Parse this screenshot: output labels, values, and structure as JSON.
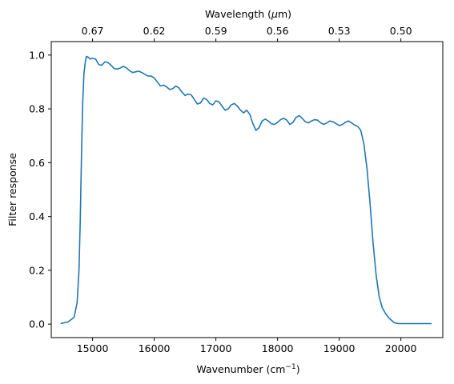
{
  "chart_data": {
    "type": "line",
    "title": "",
    "xlabel": "Wavenumber (cm",
    "xlabel_sup": "−1",
    "xlabel_close": ")",
    "ylabel": "Filter response",
    "top_xlabel": "Wavelength (",
    "top_xlabel_mu": "μ",
    "top_xlabel_end": "m)",
    "xlim": [
      14330,
      20680
    ],
    "ylim": [
      -0.05,
      1.05
    ],
    "grid": false,
    "x_ticks": [
      15000,
      16000,
      17000,
      18000,
      19000,
      20000
    ],
    "x_tick_labels": [
      "15000",
      "16000",
      "17000",
      "18000",
      "19000",
      "20000"
    ],
    "y_ticks": [
      0.0,
      0.2,
      0.4,
      0.6,
      0.8,
      1.0
    ],
    "y_tick_labels": [
      "0.0",
      "0.2",
      "0.4",
      "0.6",
      "0.8",
      "1.0"
    ],
    "top_ticks": [
      {
        "label": "0.67",
        "wavenumber": 15000
      },
      {
        "label": "0.62",
        "wavenumber": 16000
      },
      {
        "label": "0.59",
        "wavenumber": 17000
      },
      {
        "label": "0.56",
        "wavenumber": 18000
      },
      {
        "label": "0.53",
        "wavenumber": 19000
      },
      {
        "label": "0.50",
        "wavenumber": 20000
      }
    ],
    "colors": {
      "line": "#1f77b4",
      "axes": "#000000"
    },
    "series": [
      {
        "x": [
          14480,
          14600,
          14700,
          14750,
          14780,
          14800,
          14820,
          14840,
          14860,
          14880,
          14900,
          14930,
          14960,
          15000,
          15050,
          15100,
          15150,
          15200,
          15250,
          15300,
          15350,
          15400,
          15450,
          15500,
          15550,
          15600,
          15650,
          15700,
          15750,
          15800,
          15850,
          15900,
          15950,
          16000,
          16050,
          16100,
          16150,
          16200,
          16250,
          16300,
          16350,
          16400,
          16450,
          16500,
          16550,
          16600,
          16650,
          16700,
          16750,
          16800,
          16850,
          16900,
          16950,
          17000,
          17050,
          17100,
          17150,
          17200,
          17250,
          17300,
          17350,
          17400,
          17450,
          17500,
          17550,
          17600,
          17650,
          17700,
          17750,
          17800,
          17850,
          17900,
          17950,
          18000,
          18050,
          18100,
          18150,
          18200,
          18250,
          18300,
          18350,
          18400,
          18450,
          18500,
          18550,
          18600,
          18650,
          18700,
          18750,
          18800,
          18850,
          18900,
          18950,
          19000,
          19050,
          19100,
          19150,
          19200,
          19250,
          19300,
          19350,
          19400,
          19450,
          19500,
          19550,
          19600,
          19650,
          19700,
          19750,
          19800,
          19830,
          19860,
          19880,
          19900,
          19920,
          19940,
          19960,
          19980,
          20000,
          20020,
          20050,
          20100,
          20200,
          20300,
          20500
        ],
        "y": [
          0.002,
          0.008,
          0.025,
          0.08,
          0.2,
          0.38,
          0.62,
          0.82,
          0.93,
          0.97,
          0.995,
          0.992,
          0.985,
          0.988,
          0.985,
          0.965,
          0.962,
          0.975,
          0.972,
          0.962,
          0.95,
          0.948,
          0.952,
          0.958,
          0.952,
          0.942,
          0.935,
          0.938,
          0.94,
          0.935,
          0.928,
          0.922,
          0.922,
          0.915,
          0.9,
          0.885,
          0.888,
          0.882,
          0.872,
          0.875,
          0.885,
          0.878,
          0.862,
          0.85,
          0.855,
          0.852,
          0.835,
          0.818,
          0.822,
          0.84,
          0.835,
          0.82,
          0.815,
          0.83,
          0.826,
          0.81,
          0.795,
          0.8,
          0.815,
          0.82,
          0.81,
          0.795,
          0.785,
          0.795,
          0.78,
          0.745,
          0.72,
          0.73,
          0.755,
          0.762,
          0.755,
          0.745,
          0.742,
          0.75,
          0.76,
          0.765,
          0.758,
          0.742,
          0.75,
          0.768,
          0.775,
          0.765,
          0.752,
          0.748,
          0.755,
          0.76,
          0.758,
          0.748,
          0.742,
          0.748,
          0.755,
          0.752,
          0.745,
          0.738,
          0.742,
          0.75,
          0.755,
          0.748,
          0.74,
          0.735,
          0.72,
          0.67,
          0.58,
          0.45,
          0.3,
          0.18,
          0.1,
          0.06,
          0.04,
          0.025,
          0.018,
          0.012,
          0.008,
          0.005,
          0.004,
          0.003,
          0.002,
          0.002,
          0.002,
          0.002,
          0.002,
          0.002,
          0.002,
          0.002,
          0.002
        ]
      }
    ]
  }
}
